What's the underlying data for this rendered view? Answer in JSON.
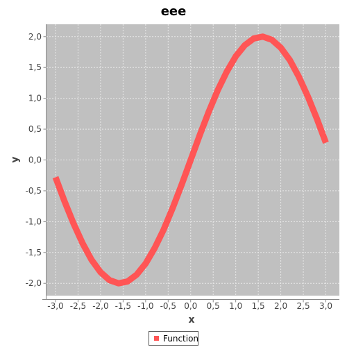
{
  "chart_data": {
    "type": "line",
    "title": "eee",
    "xlabel": "x",
    "ylabel": "y",
    "xlim": [
      -3.2,
      3.3
    ],
    "ylim": [
      -2.2,
      2.2
    ],
    "x_ticks": [
      -3.0,
      -2.5,
      -2.0,
      -1.5,
      -1.0,
      -0.5,
      0.0,
      0.5,
      1.0,
      1.5,
      2.0,
      2.5,
      3.0
    ],
    "x_tick_labels": [
      "-3,0",
      "-2,5",
      "-2,0",
      "-1,5",
      "-1,0",
      "-0,5",
      "0,0",
      "0,5",
      "1,0",
      "1,5",
      "2,0",
      "2,5",
      "3,0"
    ],
    "y_ticks": [
      -2.0,
      -1.5,
      -1.0,
      -0.5,
      0.0,
      0.5,
      1.0,
      1.5,
      2.0
    ],
    "y_tick_labels": [
      "-2,0",
      "-1,5",
      "-1,0",
      "-0,5",
      "0,0",
      "0,5",
      "1,0",
      "1,5",
      "2,0"
    ],
    "grid": true,
    "legend_position": "bottom-center",
    "series": [
      {
        "name": "Function",
        "color": "#ff5555",
        "x": [
          -3.0,
          -2.8,
          -2.6,
          -2.4,
          -2.2,
          -2.0,
          -1.8,
          -1.6,
          -1.4,
          -1.2,
          -1.0,
          -0.8,
          -0.6,
          -0.4,
          -0.2,
          0.0,
          0.2,
          0.4,
          0.6,
          0.8,
          1.0,
          1.2,
          1.4,
          1.6,
          1.8,
          2.0,
          2.2,
          2.4,
          2.6,
          2.8,
          3.0
        ],
        "y": [
          -0.28,
          -0.67,
          -1.03,
          -1.35,
          -1.62,
          -1.82,
          -1.95,
          -2.0,
          -1.97,
          -1.86,
          -1.68,
          -1.43,
          -1.13,
          -0.78,
          -0.4,
          0.0,
          0.4,
          0.78,
          1.13,
          1.43,
          1.68,
          1.86,
          1.97,
          2.0,
          1.95,
          1.82,
          1.62,
          1.35,
          1.03,
          0.67,
          0.28
        ]
      }
    ]
  },
  "colors": {
    "plot_background": "#c0c0c0",
    "grid": "#e8e8e8",
    "axis": "#888888"
  }
}
